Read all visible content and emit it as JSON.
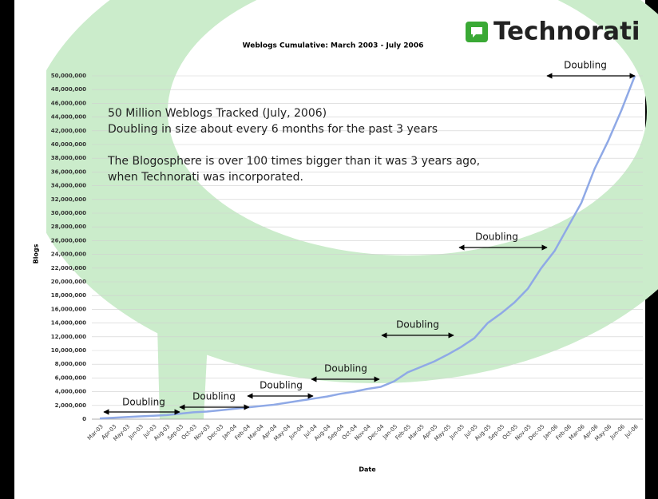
{
  "chart_data": {
    "type": "line",
    "title": "Weblogs Cumulative: March 2003 - July 2006",
    "brand": "Technorati",
    "x_label": "Date",
    "y_label": "Blogs",
    "notes": [
      "50 Million Weblogs Tracked (July, 2006)",
      "Doubling in size about every 6 months for the past 3 years",
      "The Blogosphere is over 100 times bigger than it was 3 years ago,",
      "when Technorati was incorporated."
    ],
    "annotations": [
      "Doubling",
      "Doubling",
      "Doubling",
      "Doubling",
      "Doubling",
      "Doubling",
      "Doubling"
    ],
    "categories": [
      "Mar-03",
      "Apr-03",
      "May-03",
      "Jun-03",
      "Jul-03",
      "Aug-03",
      "Sep-03",
      "Oct-03",
      "Nov-03",
      "Dec-03",
      "Jan-04",
      "Feb-04",
      "Mar-04",
      "Apr-04",
      "May-04",
      "Jun-04",
      "Jul-04",
      "Aug-04",
      "Sep-04",
      "Oct-04",
      "Nov-04",
      "Dec-04",
      "Jan-05",
      "Feb-05",
      "Mar-05",
      "Apr-05",
      "May-05",
      "Jun-05",
      "Jul-05",
      "Aug-05",
      "Sep-05",
      "Oct-05",
      "Nov-05",
      "Dec-05",
      "Jan-06",
      "Feb-06",
      "Mar-06",
      "Apr-06",
      "May-06",
      "Jun-06",
      "Jul-06"
    ],
    "values": [
      100000,
      200000,
      300000,
      400000,
      500000,
      600000,
      800000,
      1000000,
      1100000,
      1300000,
      1500000,
      1700000,
      1900000,
      2100000,
      2400000,
      2700000,
      3000000,
      3300000,
      3700000,
      4000000,
      4400000,
      4700000,
      5500000,
      6800000,
      7600000,
      8400000,
      9400000,
      10500000,
      11800000,
      14000000,
      15400000,
      17000000,
      19000000,
      22000000,
      24500000,
      28000000,
      31500000,
      36500000,
      40500000,
      45000000,
      50000000
    ],
    "color": "#8fa9e6",
    "ylim": [
      0,
      50000000
    ],
    "yticks": [
      0,
      {
        "value": 2000000,
        "label": "2,000,000"
      },
      {
        "value": 4000000,
        "label": "4,000,000"
      },
      {
        "value": 6000000,
        "label": "6,000,000"
      },
      {
        "value": 8000000,
        "label": "8,000,000"
      },
      {
        "value": 10000000,
        "label": "10,000,000"
      },
      {
        "value": 12000000,
        "label": "12,000,000"
      },
      {
        "value": 14000000,
        "label": "14,000,000"
      },
      {
        "value": 16000000,
        "label": "16,000,000"
      },
      {
        "value": 18000000,
        "label": "18,000,000"
      },
      {
        "value": 20000000,
        "label": "20,000,000"
      },
      {
        "value": 22000000,
        "label": "22,000,000"
      },
      {
        "value": 24000000,
        "label": "24,000,000"
      },
      {
        "value": 26000000,
        "label": "26,000,000"
      },
      {
        "value": 28000000,
        "label": "28,000,000"
      },
      {
        "value": 30000000,
        "label": "30,000,000"
      },
      {
        "value": 32000000,
        "label": "32,000,000"
      },
      {
        "value": 34000000,
        "label": "34,000,000"
      },
      {
        "value": 36000000,
        "label": "36,000,000"
      },
      {
        "value": 38000000,
        "label": "38,000,000"
      },
      {
        "value": 40000000,
        "label": "40,000,000"
      },
      {
        "value": 42000000,
        "label": "42,000,000"
      },
      {
        "value": 44000000,
        "label": "44,000,000"
      },
      {
        "value": 46000000,
        "label": "46,000,000"
      },
      {
        "value": 48000000,
        "label": "48,000,000"
      },
      {
        "value": 50000000,
        "label": "50,000,000"
      }
    ],
    "grid": true
  }
}
